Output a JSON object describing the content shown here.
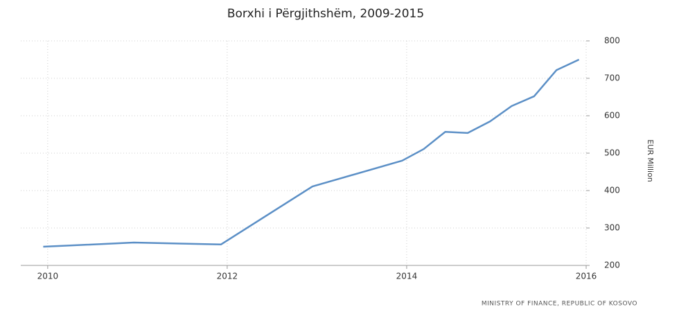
{
  "chart_data": {
    "type": "line",
    "title": "Borxhi i Përgjithshëm, 2009-2015",
    "x": [
      2009.95,
      2010.96,
      2011.93,
      2012.95,
      2013.95,
      2014.19,
      2014.43,
      2014.68,
      2014.93,
      2015.17,
      2015.42,
      2015.67,
      2015.92
    ],
    "series": [
      {
        "name": "Borxhi i Përgjithshëm",
        "color": "#5b8fc6",
        "values": [
          250,
          261,
          256,
          411,
          480,
          511,
          557,
          554,
          585,
          626,
          652,
          722,
          750
        ]
      }
    ],
    "xlim": [
      2009.7,
      2016
    ],
    "xticks": [
      2010,
      2012,
      2014,
      2016
    ],
    "ylim": [
      200,
      800
    ],
    "yticks": [
      200,
      300,
      400,
      500,
      600,
      700,
      800
    ],
    "y_label": "EUR Million",
    "source": "MINISTRY OF FINANCE, REPUBLIC OF KOSOVO",
    "grid": true
  }
}
